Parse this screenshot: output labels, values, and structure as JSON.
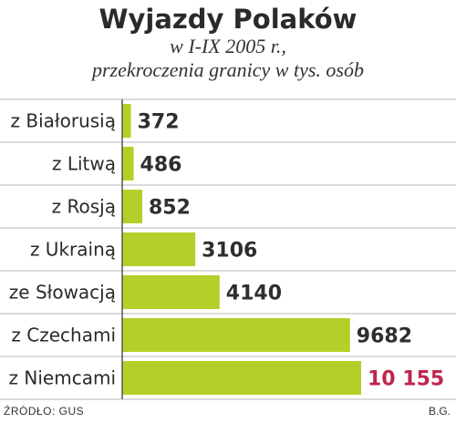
{
  "chart_data": {
    "type": "bar",
    "orientation": "horizontal",
    "title": "Wyjazdy Polaków",
    "subtitle_lines": [
      "w I-IX 2005 r.,",
      "przekroczenia granicy w tys. osób"
    ],
    "categories": [
      "z Białorusią",
      "z Litwą",
      "z Rosją",
      "z Ukrainą",
      "ze Słowacją",
      "z Czechami",
      "z Niemcami"
    ],
    "values": [
      372,
      486,
      852,
      3106,
      4140,
      9682,
      10155
    ],
    "value_labels": [
      "372",
      "486",
      "852",
      "3106",
      "4140",
      "9682",
      "10 155"
    ],
    "highlight_index": 6,
    "xlim": [
      0,
      10155
    ],
    "grid": false,
    "legend": "none",
    "bar_color": "#b5cf2a",
    "highlight_label_color": "#c0254c"
  },
  "footer": {
    "source": "ŹRÓDŁO: GUS",
    "credit": "B.G."
  }
}
